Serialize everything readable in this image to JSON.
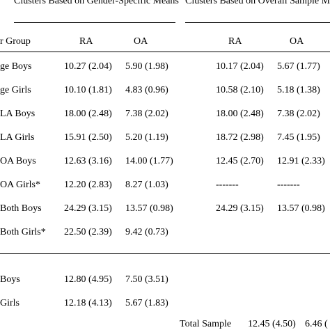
{
  "headers": {
    "group1": "Clusters Based on Gender-Specific Means",
    "group2": "Clusters Based on Overall Sample M",
    "col_group": "r Group",
    "ra1": "RA",
    "oa1": "OA",
    "ra2": "RA",
    "oa2": "OA"
  },
  "rows": [
    {
      "label": "ge Boys",
      "ra1": "10.27 (2.04)",
      "oa1": "5.90 (1.98)",
      "ra2": "10.17 (2.04)",
      "oa2": "5.67 (1.77)"
    },
    {
      "label": "ge Girls",
      "ra1": "10.10 (1.81)",
      "oa1": "4.83 (0.96)",
      "ra2": "10.58 (2.10)",
      "oa2": "5.18 (1.38)"
    },
    {
      "label": "LA Boys",
      "ra1": "18.00 (2.48)",
      "oa1": "7.38 (2.02)",
      "ra2": "18.00 (2.48)",
      "oa2": "7.38 (2.02)"
    },
    {
      "label": "LA Girls",
      "ra1": "15.91 (2.50)",
      "oa1": "5.20 (1.19)",
      "ra2": "18.72 (2.98)",
      "oa2": "7.45 (1.95)"
    },
    {
      "label": "OA Boys",
      "ra1": "12.63 (3.16)",
      "oa1": "14.00 (1.77)",
      "ra2": "12.45 (2.70)",
      "oa2": "12.91 (2.33)"
    },
    {
      "label": "OA Girls*",
      "ra1": "12.20 (2.83)",
      "oa1": "8.27 (1.03)",
      "ra2": "-------",
      "oa2": "-------"
    },
    {
      "label": "Both Boys",
      "ra1": "24.29 (3.15)",
      "oa1": "13.57 (0.98)",
      "ra2": "24.29 (3.15)",
      "oa2": "13.57 (0.98)"
    },
    {
      "label": "Both Girls*",
      "ra1": "22.50 (2.39)",
      "oa1": "9.42 (0.73)",
      "ra2": "",
      "oa2": ""
    }
  ],
  "totals": [
    {
      "label": "Boys",
      "ra1": "12.80 (4.95)",
      "oa1": "7.50 (3.51)"
    },
    {
      "label": "Girls",
      "ra1": "12.18 (4.13)",
      "oa1": "5.67 (1.83)"
    }
  ],
  "total_sample": {
    "label": "Total Sample",
    "ra": "12.45 (4.50)",
    "oa": "6.46 ("
  }
}
